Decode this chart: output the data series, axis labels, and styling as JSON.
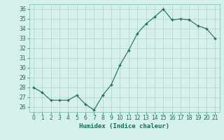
{
  "x": [
    0,
    1,
    2,
    3,
    4,
    5,
    6,
    7,
    8,
    9,
    10,
    11,
    12,
    13,
    14,
    15,
    16,
    17,
    18,
    19,
    20,
    21
  ],
  "y": [
    28.0,
    27.5,
    26.7,
    26.7,
    26.7,
    27.2,
    26.3,
    25.7,
    27.2,
    28.3,
    30.3,
    31.8,
    33.5,
    34.5,
    35.2,
    36.0,
    34.9,
    35.0,
    34.9,
    34.3,
    34.0,
    33.0
  ],
  "xlabel": "Humidex (Indice chaleur)",
  "ylim": [
    25.5,
    36.5
  ],
  "xlim": [
    -0.5,
    21.5
  ],
  "yticks": [
    26,
    27,
    28,
    29,
    30,
    31,
    32,
    33,
    34,
    35,
    36
  ],
  "xticks": [
    0,
    1,
    2,
    3,
    4,
    5,
    6,
    7,
    8,
    9,
    10,
    11,
    12,
    13,
    14,
    15,
    16,
    17,
    18,
    19,
    20,
    21
  ],
  "line_color": "#1a6b5a",
  "marker": "+",
  "bg_color": "#d6f0ec",
  "grid_color": "#b5d8d2",
  "tick_color": "#1a6b5a",
  "label_color": "#1a6b5a",
  "spine_color": "#7ab8b0"
}
